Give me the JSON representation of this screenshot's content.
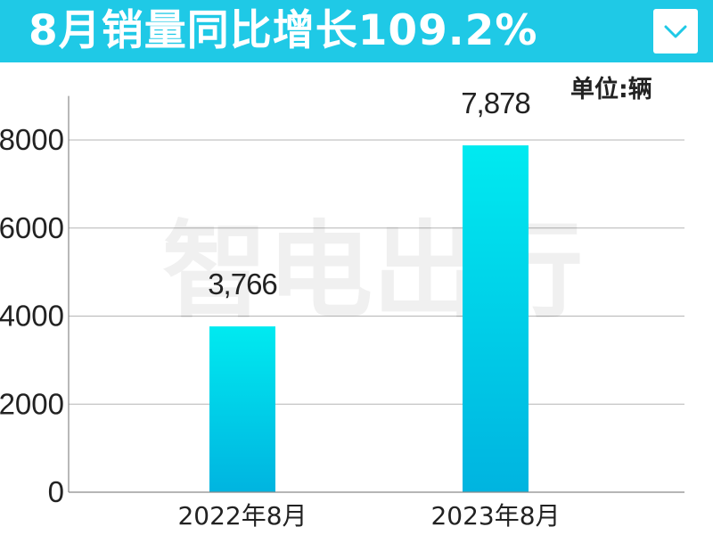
{
  "header": {
    "title": "8月销量同比增长109.2%",
    "dropdown_icon": "chevron-down-icon"
  },
  "unit_label": "单位:辆",
  "watermark": "智电出行",
  "colors": {
    "banner": "#1fc9e6",
    "bar_top": "#00eaf0",
    "bar_bottom": "#00b4e0",
    "axis_text": "#222222",
    "grid": "#b5b5b5"
  },
  "chart_data": {
    "type": "bar",
    "categories": [
      "2022年8月",
      "2023年8月"
    ],
    "values": [
      3766,
      7878
    ],
    "data_labels": [
      "3,766",
      "7,878"
    ],
    "ylim": [
      0,
      9000
    ],
    "yticks": [
      0,
      2000,
      4000,
      6000,
      8000
    ],
    "grid": true
  }
}
